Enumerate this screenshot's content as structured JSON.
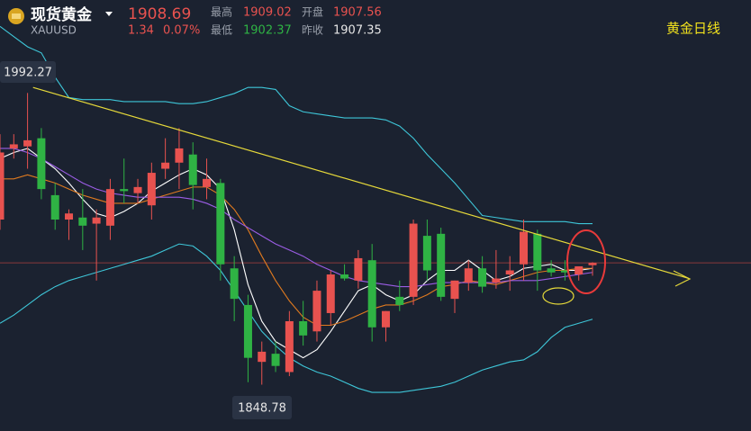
{
  "header": {
    "name": "现货黄金",
    "symbol": "XAUUSD",
    "change": "1.34",
    "change_pct": "0.07%",
    "high_label": "最高",
    "open_label": "开盘",
    "low_label": "最低",
    "prev_label": "昨收",
    "prev_close": "1907.35",
    "chart_label": "黄金日线"
  },
  "chart_data": {
    "type": "candlestick",
    "up_color": "#e8524f",
    "down_color": "#2fb344",
    "xlim": [
      0,
      54.5
    ],
    "ylim": [
      1826,
      2038
    ],
    "open": [
      1930,
      1965,
      1966,
      1970,
      1942,
      1930,
      1931,
      1928,
      1927,
      1945,
      1943,
      1937,
      1955,
      1958,
      1962,
      1946,
      1948,
      1906,
      1888,
      1860,
      1864,
      1855,
      1880,
      1875,
      1884,
      1903,
      1900,
      1910,
      1877,
      1892,
      1892,
      1922,
      1923,
      1891,
      1899,
      1906,
      1899,
      1903,
      1908,
      1923,
      1906,
      1905,
      1903,
      1907.56
    ],
    "high": [
      1972,
      1972,
      1992.27,
      1975,
      1948,
      1935,
      1945,
      1935,
      1950,
      1960,
      1950,
      1958,
      1970,
      1975,
      1968,
      1960,
      1950,
      1912,
      1893,
      1870,
      1870,
      1885,
      1890,
      1900,
      1905,
      1908,
      1915,
      1918,
      1885,
      1900,
      1930,
      1930,
      1926,
      1900,
      1910,
      1912,
      1915,
      1912,
      1930,
      1925,
      1910,
      1910,
      1906,
      1909.02
    ],
    "low": [
      1925,
      1960,
      1955,
      1940,
      1925,
      1920,
      1915,
      1900,
      1920,
      1938,
      1938,
      1930,
      1950,
      1945,
      1935,
      1940,
      1900,
      1880,
      1850,
      1848.78,
      1855,
      1853,
      1868,
      1870,
      1878,
      1900,
      1896,
      1870,
      1870,
      1885,
      1888,
      1900,
      1890,
      1884,
      1895,
      1894,
      1896,
      1895,
      1900,
      1895,
      1902,
      1900,
      1900,
      1902.37
    ],
    "close": [
      1963,
      1967,
      1969,
      1945,
      1930,
      1933,
      1927,
      1931,
      1945,
      1944,
      1946,
      1953,
      1958,
      1965,
      1947,
      1950,
      1908,
      1891,
      1862,
      1865,
      1858,
      1880,
      1873,
      1895,
      1903,
      1901,
      1911,
      1877,
      1885,
      1888,
      1928,
      1905,
      1892,
      1900,
      1906,
      1897,
      1901,
      1905,
      1924,
      1905,
      1904,
      1904,
      1907,
      1908.69
    ],
    "lines": [
      {
        "color": "#ffffff",
        "values": [
          1960,
          1963,
          1965,
          1960,
          1955,
          1948,
          1940,
          1933,
          1931,
          1934,
          1938,
          1944,
          1948,
          1952,
          1955,
          1952,
          1945,
          1925,
          1898,
          1880,
          1870,
          1866,
          1862,
          1866,
          1875,
          1885,
          1895,
          1898,
          1893,
          1890,
          1893,
          1900,
          1905,
          1905,
          1910,
          1905,
          1900,
          1902,
          1906,
          1907,
          1908,
          1905,
          1905,
          1906
        ]
      },
      {
        "color": "#e07a1f",
        "values": [
          1950,
          1950,
          1952,
          1950,
          1948,
          1945,
          1942,
          1940,
          1938,
          1938,
          1938,
          1940,
          1942,
          1944,
          1946,
          1946,
          1942,
          1935,
          1925,
          1912,
          1900,
          1890,
          1882,
          1878,
          1878,
          1880,
          1883,
          1886,
          1888,
          1888,
          1890,
          1893,
          1897,
          1898,
          1900,
          1899,
          1898,
          1900,
          1902,
          1904,
          1905,
          1905,
          1906,
          1906
        ]
      },
      {
        "color": "#9b5de5",
        "values": [
          1965,
          1965,
          1963,
          1960,
          1956,
          1952,
          1948,
          1945,
          1943,
          1942,
          1941,
          1941,
          1941,
          1941,
          1940,
          1938,
          1935,
          1930,
          1926,
          1922,
          1918,
          1915,
          1912,
          1908,
          1905,
          1902,
          1900,
          1899,
          1898,
          1897,
          1897,
          1898,
          1899,
          1899,
          1899,
          1899,
          1899,
          1900,
          1900,
          1900,
          1901,
          1902,
          1903,
          1904
        ]
      },
      {
        "color": "#3ec6d8",
        "values": [
          2025,
          2020,
          2015,
          2012,
          2000,
          1990,
          1989,
          1989,
          1989,
          1988,
          1988,
          1988,
          1988,
          1987,
          1987,
          1988,
          1990,
          1992,
          1995,
          1995,
          1994,
          1986,
          1983,
          1982,
          1981,
          1980,
          1980,
          1980,
          1979,
          1976,
          1970,
          1962,
          1955,
          1948,
          1940,
          1932,
          1931,
          1930,
          1929,
          1929,
          1929,
          1929,
          1928,
          1928
        ]
      },
      {
        "color": "#3ec6d8",
        "values": [
          1879,
          1883,
          1888,
          1893,
          1897,
          1900,
          1902,
          1904,
          1906,
          1908,
          1910,
          1912,
          1915,
          1918,
          1917,
          1912,
          1905,
          1895,
          1885,
          1875,
          1868,
          1862,
          1858,
          1855,
          1853,
          1850,
          1847,
          1845,
          1845,
          1845,
          1846,
          1847,
          1848,
          1850,
          1853,
          1856,
          1858,
          1860,
          1861,
          1865,
          1872,
          1877,
          1879,
          1881
        ]
      }
    ],
    "trend_line": {
      "color": "#e6d93a",
      "x": [
        2.4,
        50
      ],
      "values": [
        1995,
        1901
      ]
    }
  }
}
